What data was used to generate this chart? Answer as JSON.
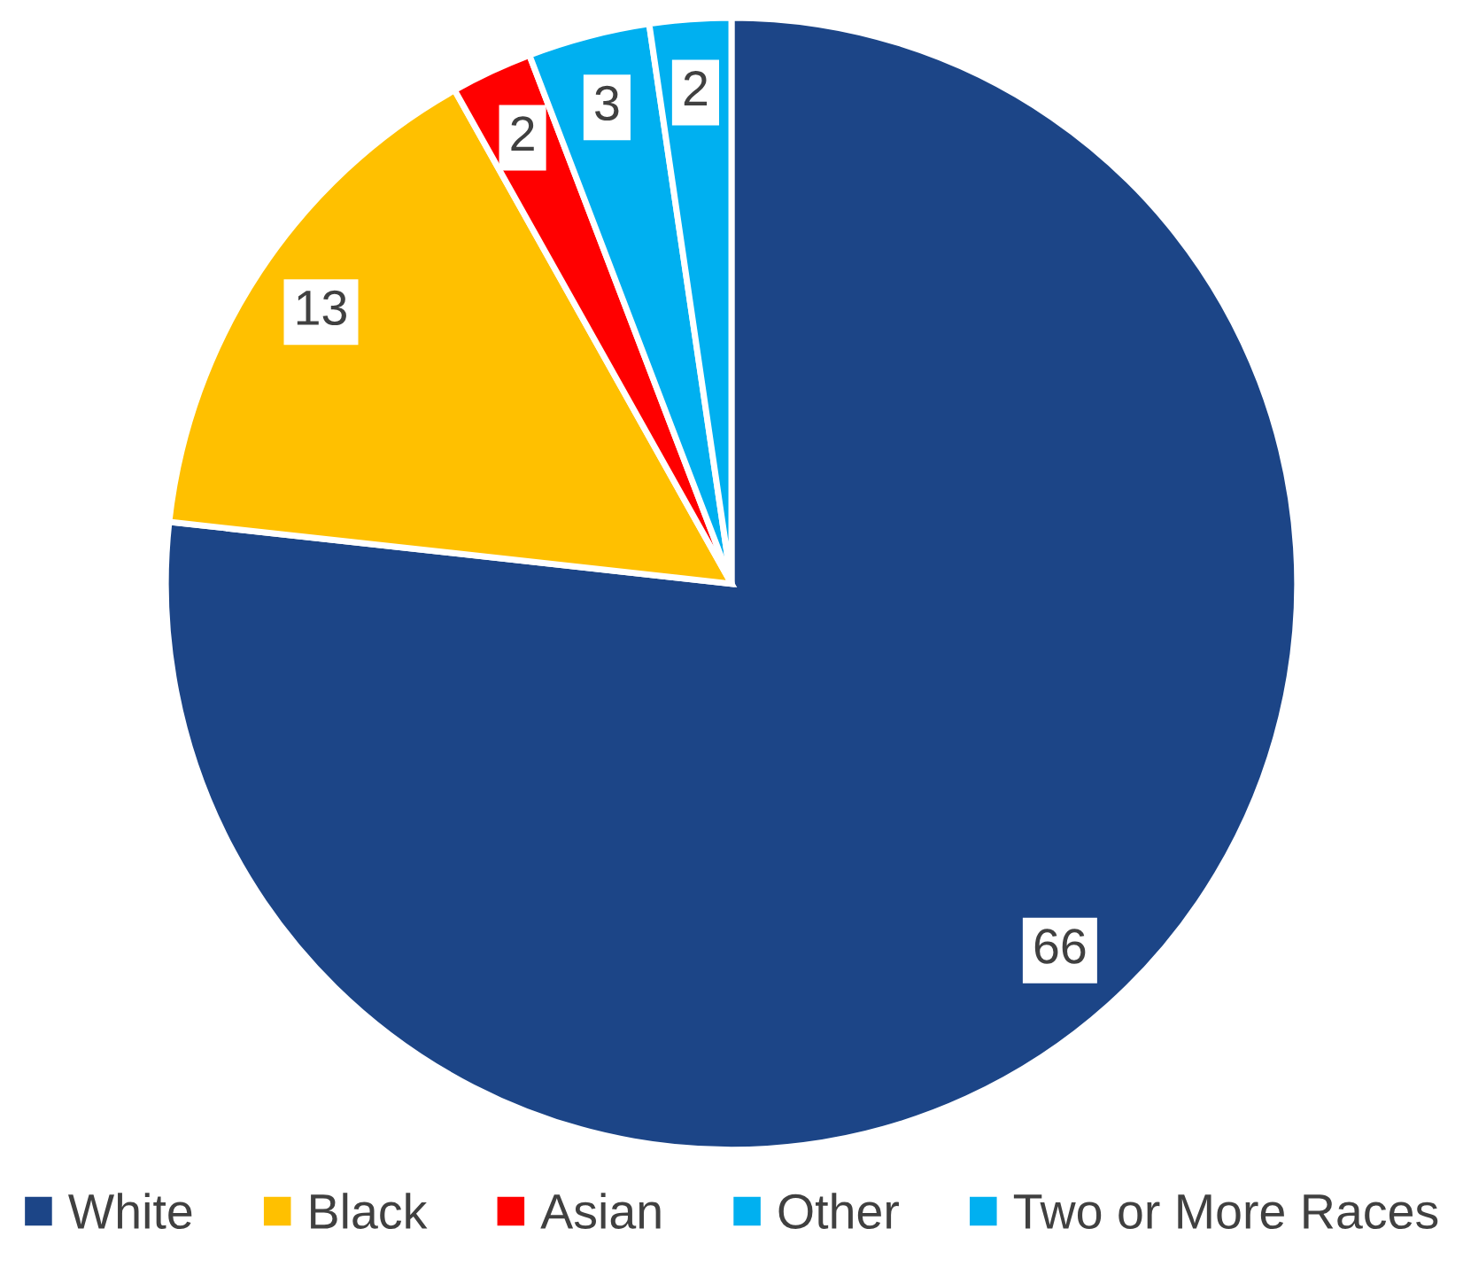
{
  "chart_data": {
    "type": "pie",
    "categories": [
      "White",
      "Black",
      "Asian",
      "Other",
      "Two or More Races"
    ],
    "values": [
      66,
      13,
      2,
      3,
      2
    ],
    "colors": [
      "#1c4587",
      "#ffc000",
      "#ff0000",
      "#00b0f0",
      "#00b0f0"
    ],
    "data_labels": true,
    "legend": "bottom"
  }
}
